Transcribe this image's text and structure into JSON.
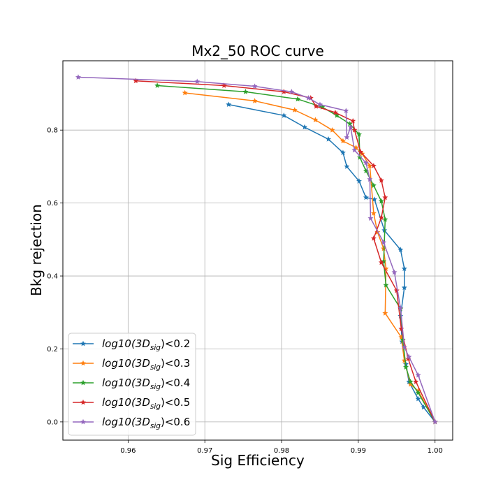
{
  "chart_data": {
    "type": "line",
    "title": "Mx2_50 ROC curve",
    "xlabel": "Sig Efficiency",
    "ylabel": "Bkg rejection",
    "xlim": [
      0.9515,
      1.0023
    ],
    "ylim": [
      -0.05,
      0.99
    ],
    "xticks": [
      0.96,
      0.97,
      0.98,
      0.99,
      1.0
    ],
    "xtick_labels": [
      "0.96",
      "0.97",
      "0.98",
      "0.99",
      "1.00"
    ],
    "yticks": [
      0.0,
      0.2,
      0.4,
      0.6,
      0.8
    ],
    "ytick_labels": [
      "0.0",
      "0.2",
      "0.4",
      "0.6",
      "0.8"
    ],
    "grid": true,
    "marker": "star",
    "legend_position": "lower-left",
    "series": [
      {
        "name_prefix": "log10(3D",
        "name_sub": "sig",
        "name_suffix": ")<0.2",
        "color": "#1f77b4",
        "x": [
          0.9731,
          0.9803,
          0.983,
          0.9861,
          0.988,
          0.9885,
          0.9901,
          0.991,
          0.9921,
          0.9934,
          0.9955,
          0.996,
          0.996,
          0.9955,
          0.9957,
          0.9962,
          0.9966,
          0.9978,
          0.9985,
          1.0
        ],
        "y": [
          0.87,
          0.84,
          0.808,
          0.775,
          0.738,
          0.7,
          0.66,
          0.615,
          0.61,
          0.525,
          0.472,
          0.42,
          0.368,
          0.29,
          0.22,
          0.158,
          0.11,
          0.063,
          0.04,
          0.0
        ]
      },
      {
        "name_prefix": "log10(3D",
        "name_sub": "sig",
        "name_suffix": ")<0.3",
        "color": "#ff7f0e",
        "x": [
          0.9674,
          0.9765,
          0.9817,
          0.9844,
          0.9866,
          0.988,
          0.9897,
          0.9905,
          0.9915,
          0.992,
          0.9925,
          0.9933,
          0.9936,
          0.9935,
          0.9956,
          0.996,
          0.9968,
          0.9978,
          1.0
        ],
        "y": [
          0.902,
          0.88,
          0.855,
          0.828,
          0.8,
          0.77,
          0.752,
          0.735,
          0.702,
          0.572,
          0.52,
          0.475,
          0.42,
          0.298,
          0.232,
          0.168,
          0.103,
          0.085,
          0.0
        ]
      },
      {
        "name_prefix": "log10(3D",
        "name_sub": "sig",
        "name_suffix": ")<0.4",
        "color": "#2ca02c",
        "x": [
          0.9638,
          0.9753,
          0.9821,
          0.9853,
          0.9872,
          0.9889,
          0.9901,
          0.9902,
          0.991,
          0.992,
          0.993,
          0.9935,
          0.9933,
          0.9936,
          0.9955,
          0.9958,
          0.9962,
          0.9968,
          0.9978,
          1.0
        ],
        "y": [
          0.922,
          0.905,
          0.885,
          0.863,
          0.84,
          0.817,
          0.788,
          0.725,
          0.688,
          0.648,
          0.605,
          0.555,
          0.44,
          0.375,
          0.31,
          0.225,
          0.15,
          0.11,
          0.08,
          0.0
        ]
      },
      {
        "name_prefix": "log10(3D",
        "name_sub": "sig",
        "name_suffix": ")<0.5",
        "color": "#d62728",
        "x": [
          0.961,
          0.9725,
          0.9803,
          0.9838,
          0.9845,
          0.987,
          0.9893,
          0.9895,
          0.9903,
          0.992,
          0.993,
          0.9935,
          0.993,
          0.992,
          0.993,
          0.995,
          0.9956,
          0.9965,
          0.9975,
          1.0
        ],
        "y": [
          0.935,
          0.922,
          0.905,
          0.888,
          0.865,
          0.848,
          0.825,
          0.8,
          0.74,
          0.702,
          0.662,
          0.615,
          0.56,
          0.503,
          0.437,
          0.36,
          0.255,
          0.173,
          0.11,
          0.0
        ]
      },
      {
        "name_prefix": "log10(3D",
        "name_sub": "sig",
        "name_suffix": ")<0.6",
        "color": "#9467bd",
        "x": [
          0.9535,
          0.969,
          0.9765,
          0.9813,
          0.9835,
          0.985,
          0.9884,
          0.9885,
          0.989,
          0.9895,
          0.991,
          0.9915,
          0.9916,
          0.9933,
          0.9947,
          0.9955,
          0.996,
          0.9966,
          0.9978,
          1.0
        ],
        "y": [
          0.945,
          0.933,
          0.92,
          0.905,
          0.888,
          0.87,
          0.853,
          0.78,
          0.808,
          0.745,
          0.71,
          0.665,
          0.558,
          0.492,
          0.41,
          0.312,
          0.205,
          0.178,
          0.128,
          0.0
        ]
      }
    ]
  }
}
